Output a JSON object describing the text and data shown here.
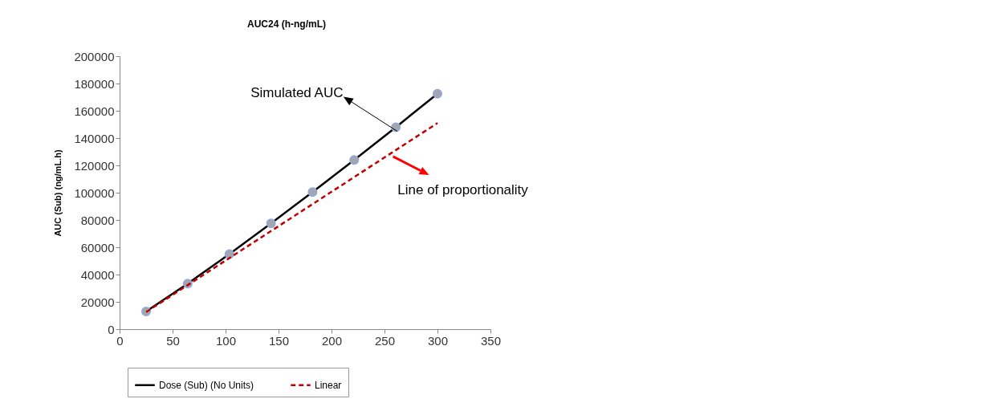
{
  "chart_data": {
    "type": "line",
    "title": "AUC24 (h-ng/mL)",
    "ylabel": "AUC (Sub) (ng/mL.h)",
    "xlim": [
      0,
      350
    ],
    "xticks": [
      0,
      50,
      100,
      150,
      200,
      250,
      300,
      350
    ],
    "ylim": [
      0,
      200000
    ],
    "yticks": [
      0,
      20000,
      40000,
      60000,
      80000,
      100000,
      120000,
      140000,
      160000,
      180000,
      200000
    ],
    "grid": false,
    "legend": "bottom",
    "series": [
      {
        "name": "Dose (Sub) (No Units)",
        "color": "#000000",
        "marker": "circle",
        "line_style": "solid",
        "x": [
          25,
          64.3,
          103.6,
          142.9,
          182.1,
          221.4,
          260.7,
          300
        ],
        "values": [
          12900,
          33400,
          55000,
          77500,
          100500,
          124000,
          148000,
          172500
        ]
      },
      {
        "name": "Linear",
        "color": "#c00000",
        "marker": "none",
        "line_style": "dashed",
        "x": [
          25,
          300
        ],
        "values": [
          12500,
          151000
        ]
      }
    ],
    "annotations": [
      {
        "text": "Simulated AUC",
        "x": 262,
        "y": 145000
      },
      {
        "text": "Line of proportionality",
        "x": 258,
        "y": 126500
      }
    ]
  }
}
